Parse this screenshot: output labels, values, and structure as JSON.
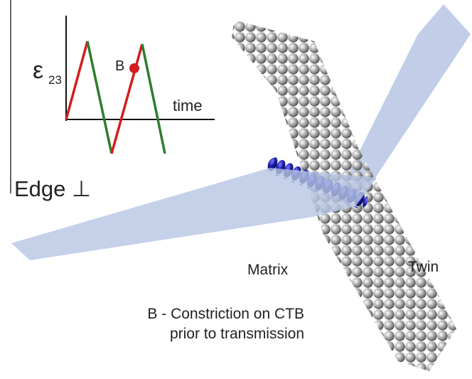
{
  "inset": {
    "strain_symbol": "ε",
    "strain_subscript": "23",
    "point_label": "B",
    "x_axis_label": "time"
  },
  "dislocation_label": "Edge ⊥",
  "region_labels": {
    "matrix": "Matrix",
    "twin": "Twin"
  },
  "caption": {
    "line1": "B - Constriction on CTB",
    "line2": "prior to transmission"
  }
}
